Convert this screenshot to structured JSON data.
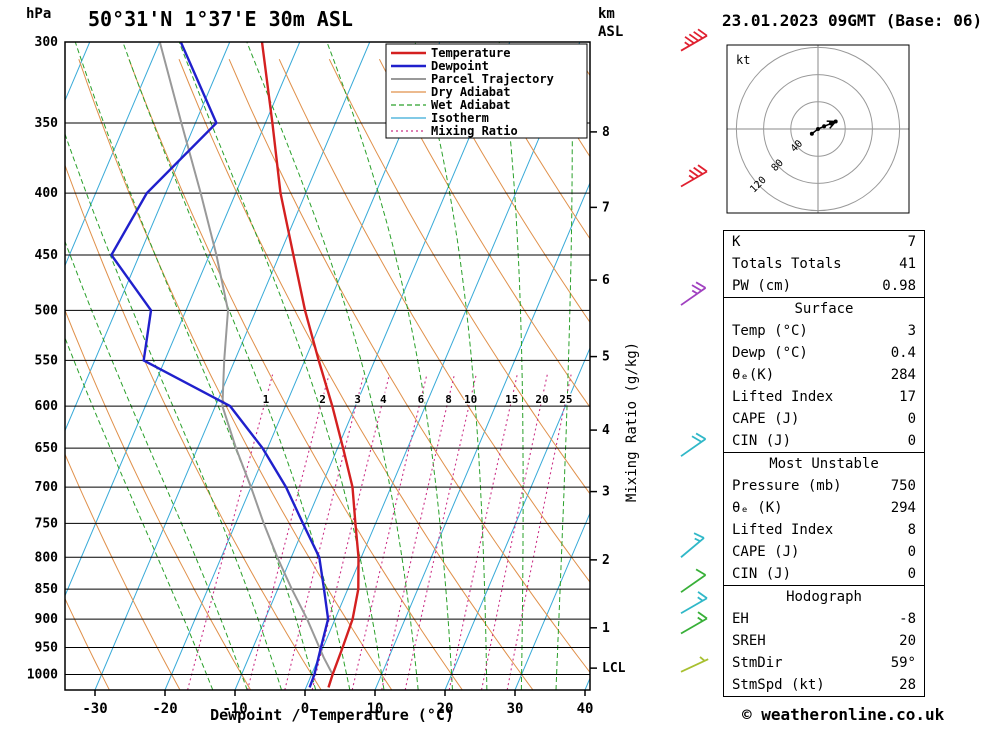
{
  "header": {
    "station": "50°31'N 1°37'E 30m ASL",
    "datetime": "23.01.2023 09GMT (Base: 06)",
    "pressure_unit": "hPa",
    "altitude_unit": "km",
    "altitude_ref": "ASL"
  },
  "colors": {
    "temperature": "#d42020",
    "dewpoint": "#2020cc",
    "parcel": "#999999",
    "dry_adiabat": "#e0904a",
    "wet_adiabat": "#2aa02a",
    "isotherm": "#38aad8",
    "mixing_ratio": "#cc3388"
  },
  "legend": {
    "items": [
      {
        "label": "Temperature",
        "color": "#d42020",
        "width": 2.5,
        "dash": ""
      },
      {
        "label": "Dewpoint",
        "color": "#2020cc",
        "width": 2.5,
        "dash": ""
      },
      {
        "label": "Parcel Trajectory",
        "color": "#999999",
        "width": 2,
        "dash": ""
      },
      {
        "label": "Dry Adiabat",
        "color": "#e0904a",
        "width": 1.2,
        "dash": ""
      },
      {
        "label": "Wet Adiabat",
        "color": "#2aa02a",
        "width": 1.2,
        "dash": "5,3"
      },
      {
        "label": "Isotherm",
        "color": "#38aad8",
        "width": 1.2,
        "dash": ""
      },
      {
        "label": "Mixing Ratio",
        "color": "#cc3388",
        "width": 1.2,
        "dash": "2,3"
      }
    ]
  },
  "axes": {
    "x_label": "Dewpoint / Temperature (°C)",
    "x_ticks": [
      -30,
      -20,
      -10,
      0,
      10,
      20,
      30,
      40
    ],
    "pressure_ticks": [
      300,
      350,
      400,
      450,
      500,
      550,
      600,
      650,
      700,
      750,
      800,
      850,
      900,
      950,
      1000
    ],
    "km_ticks": [
      {
        "km": 8,
        "p": 356
      },
      {
        "km": 7,
        "p": 411
      },
      {
        "km": 6,
        "p": 472
      },
      {
        "km": 5,
        "p": 546
      },
      {
        "km": 4,
        "p": 628
      },
      {
        "km": 3,
        "p": 706
      },
      {
        "km": 2,
        "p": 804
      },
      {
        "km": 1,
        "p": 915
      }
    ],
    "lcl": {
      "label": "LCL",
      "p": 988
    },
    "mixing_ratio_label": "Mixing Ratio (g/kg)",
    "mixing_ratio_values": [
      1,
      2,
      3,
      4,
      6,
      8,
      10,
      15,
      20,
      25
    ]
  },
  "chart_data": {
    "type": "line",
    "variant": "skew-t-log-p",
    "title": "50°31'N 1°37'E 30m ASL  23.01.2023 09GMT (Base: 06)",
    "xlabel": "Dewpoint / Temperature (°C)",
    "ylabel": "hPa",
    "x_range": [
      -40,
      45
    ],
    "pressure_range": [
      1030,
      300
    ],
    "y_scale": "log-pressure",
    "series": [
      {
        "name": "Temperature",
        "color": "#d42020",
        "points_p_T": [
          [
            1025,
            3.2
          ],
          [
            1000,
            3
          ],
          [
            950,
            2.8
          ],
          [
            900,
            2.5
          ],
          [
            850,
            1.5
          ],
          [
            800,
            -0.4
          ],
          [
            750,
            -2.9
          ],
          [
            700,
            -5.5
          ],
          [
            650,
            -9.2
          ],
          [
            600,
            -13.3
          ],
          [
            550,
            -18
          ],
          [
            500,
            -23
          ],
          [
            450,
            -28
          ],
          [
            400,
            -33.6
          ],
          [
            350,
            -39
          ],
          [
            300,
            -45.4
          ]
        ]
      },
      {
        "name": "Dewpoint",
        "color": "#2020cc",
        "points_p_T": [
          [
            1025,
            0.5
          ],
          [
            1000,
            0.4
          ],
          [
            950,
            -0.3
          ],
          [
            900,
            -1
          ],
          [
            850,
            -3.4
          ],
          [
            800,
            -6
          ],
          [
            750,
            -10.4
          ],
          [
            700,
            -15
          ],
          [
            650,
            -20.7
          ],
          [
            600,
            -27.9
          ],
          [
            550,
            -43
          ],
          [
            500,
            -45
          ],
          [
            450,
            -54
          ],
          [
            400,
            -52.7
          ],
          [
            350,
            -47
          ],
          [
            300,
            -57
          ]
        ]
      },
      {
        "name": "Parcel Trajectory",
        "color": "#999999",
        "points_p_T": [
          [
            1025,
            3.2
          ],
          [
            1000,
            3
          ],
          [
            968,
            0.7
          ],
          [
            900,
            -4
          ],
          [
            850,
            -8
          ],
          [
            800,
            -12
          ],
          [
            750,
            -16
          ],
          [
            700,
            -20
          ],
          [
            650,
            -24.5
          ],
          [
            600,
            -29
          ],
          [
            550,
            -31.5
          ],
          [
            500,
            -34
          ],
          [
            450,
            -39
          ],
          [
            400,
            -45
          ],
          [
            350,
            -52
          ],
          [
            300,
            -60
          ]
        ]
      }
    ]
  },
  "wind_barbs": {
    "unit": "kt",
    "levels": [
      {
        "p": 305,
        "speed_kt": 45,
        "dir_deg": 60,
        "color": "#e02030"
      },
      {
        "p": 395,
        "speed_kt": 35,
        "dir_deg": 60,
        "color": "#e02030"
      },
      {
        "p": 495,
        "speed_kt": 25,
        "dir_deg": 55,
        "color": "#a040c0"
      },
      {
        "p": 660,
        "speed_kt": 20,
        "dir_deg": 55,
        "color": "#30b8c8"
      },
      {
        "p": 800,
        "speed_kt": 15,
        "dir_deg": 50,
        "color": "#30b8c8"
      },
      {
        "p": 855,
        "speed_kt": 12,
        "dir_deg": 55,
        "color": "#38b038"
      },
      {
        "p": 890,
        "speed_kt": 18,
        "dir_deg": 60,
        "color": "#30b8c8"
      },
      {
        "p": 925,
        "speed_kt": 15,
        "dir_deg": 60,
        "color": "#38b038"
      },
      {
        "p": 995,
        "speed_kt": 8,
        "dir_deg": 65,
        "color": "#a8c030"
      }
    ]
  },
  "hodograph": {
    "unit_label": "kt",
    "rings_kt": [
      40,
      80,
      120
    ],
    "trace_uv_kt": [
      [
        -9,
        -7
      ],
      [
        0,
        0
      ],
      [
        9,
        4
      ],
      [
        19,
        8
      ],
      [
        26,
        11
      ]
    ]
  },
  "stats_tables": [
    {
      "rows": [
        [
          "K",
          "7"
        ],
        [
          "Totals Totals",
          "41"
        ],
        [
          "PW (cm)",
          "0.98"
        ]
      ]
    },
    {
      "title": "Surface",
      "rows": [
        [
          "Temp (°C)",
          "3"
        ],
        [
          "Dewp (°C)",
          "0.4"
        ],
        [
          "θₑ(K)",
          "284"
        ],
        [
          "Lifted Index",
          "17"
        ],
        [
          "CAPE (J)",
          "0"
        ],
        [
          "CIN (J)",
          "0"
        ]
      ]
    },
    {
      "title": "Most Unstable",
      "rows": [
        [
          "Pressure (mb)",
          "750"
        ],
        [
          "θₑ (K)",
          "294"
        ],
        [
          "Lifted Index",
          "8"
        ],
        [
          "CAPE (J)",
          "0"
        ],
        [
          "CIN (J)",
          "0"
        ]
      ]
    },
    {
      "title": "Hodograph",
      "rows": [
        [
          "EH",
          "-8"
        ],
        [
          "SREH",
          "20"
        ],
        [
          "StmDir",
          "59°"
        ],
        [
          "StmSpd (kt)",
          "28"
        ]
      ]
    }
  ],
  "footer": {
    "copyright": "© weatheronline.co.uk"
  }
}
